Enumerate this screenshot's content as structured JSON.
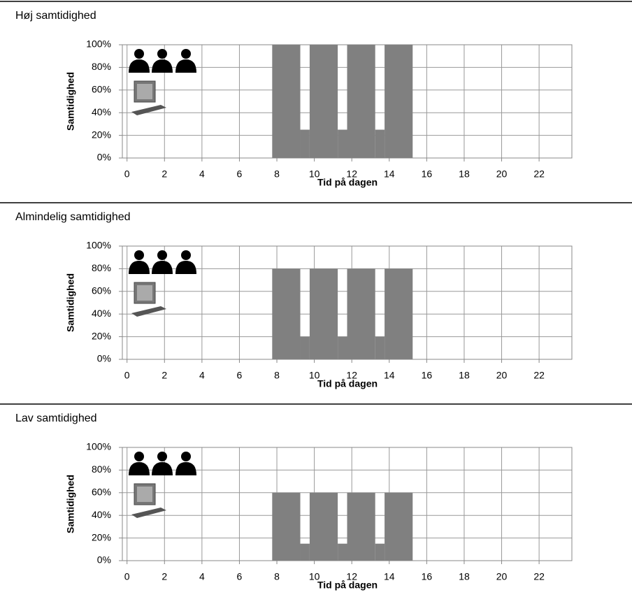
{
  "chart_data": [
    {
      "type": "histogram",
      "title": "Høj samtidighed",
      "x_label": "Tid på dagen",
      "y_label": "Samtidighed",
      "bins": [
        7.75,
        9.25,
        9.75,
        11.25,
        11.75,
        13.25,
        13.75,
        15.25
      ],
      "values": [
        100,
        25,
        100,
        25,
        100,
        25,
        100
      ],
      "color": "#808080",
      "xlim": [
        -0.25,
        23.75
      ],
      "xticks": [
        0,
        2,
        4,
        6,
        8,
        10,
        12,
        14,
        16,
        18,
        20,
        22
      ],
      "ylim": [
        0,
        100
      ],
      "yticks": [
        {
          "value": 0,
          "label": "0%"
        },
        {
          "value": 20,
          "label": "20%"
        },
        {
          "value": 40,
          "label": "40%"
        },
        {
          "value": 60,
          "label": "60%"
        },
        {
          "value": 80,
          "label": "80%"
        },
        {
          "value": 100,
          "label": "100%"
        }
      ],
      "grid": true
    },
    {
      "type": "histogram",
      "title": "Almindelig samtidighed",
      "x_label": "Tid på dagen",
      "y_label": "Samtidighed",
      "bins": [
        7.75,
        9.25,
        9.75,
        11.25,
        11.75,
        13.25,
        13.75,
        15.25
      ],
      "values": [
        80,
        20,
        80,
        20,
        80,
        20,
        80
      ],
      "color": "#808080",
      "xlim": [
        -0.25,
        23.75
      ],
      "xticks": [
        0,
        2,
        4,
        6,
        8,
        10,
        12,
        14,
        16,
        18,
        20,
        22
      ],
      "ylim": [
        0,
        100
      ],
      "yticks": [
        {
          "value": 0,
          "label": "0%"
        },
        {
          "value": 20,
          "label": "20%"
        },
        {
          "value": 40,
          "label": "40%"
        },
        {
          "value": 60,
          "label": "60%"
        },
        {
          "value": 80,
          "label": "80%"
        },
        {
          "value": 100,
          "label": "100%"
        }
      ],
      "grid": true
    },
    {
      "type": "histogram",
      "title": "Lav samtidighed",
      "x_label": "Tid på dagen",
      "y_label": "Samtidighed",
      "bins": [
        7.75,
        9.25,
        9.75,
        11.25,
        11.75,
        13.25,
        13.75,
        15.25
      ],
      "values": [
        60,
        15,
        60,
        15,
        60,
        15,
        60
      ],
      "color": "#808080",
      "xlim": [
        -0.25,
        23.75
      ],
      "xticks": [
        0,
        2,
        4,
        6,
        8,
        10,
        12,
        14,
        16,
        18,
        20,
        22
      ],
      "ylim": [
        0,
        100
      ],
      "yticks": [
        {
          "value": 0,
          "label": "0%"
        },
        {
          "value": 20,
          "label": "20%"
        },
        {
          "value": 40,
          "label": "40%"
        },
        {
          "value": 60,
          "label": "60%"
        },
        {
          "value": 80,
          "label": "80%"
        },
        {
          "value": 100,
          "label": "100%"
        }
      ],
      "grid": true
    }
  ]
}
